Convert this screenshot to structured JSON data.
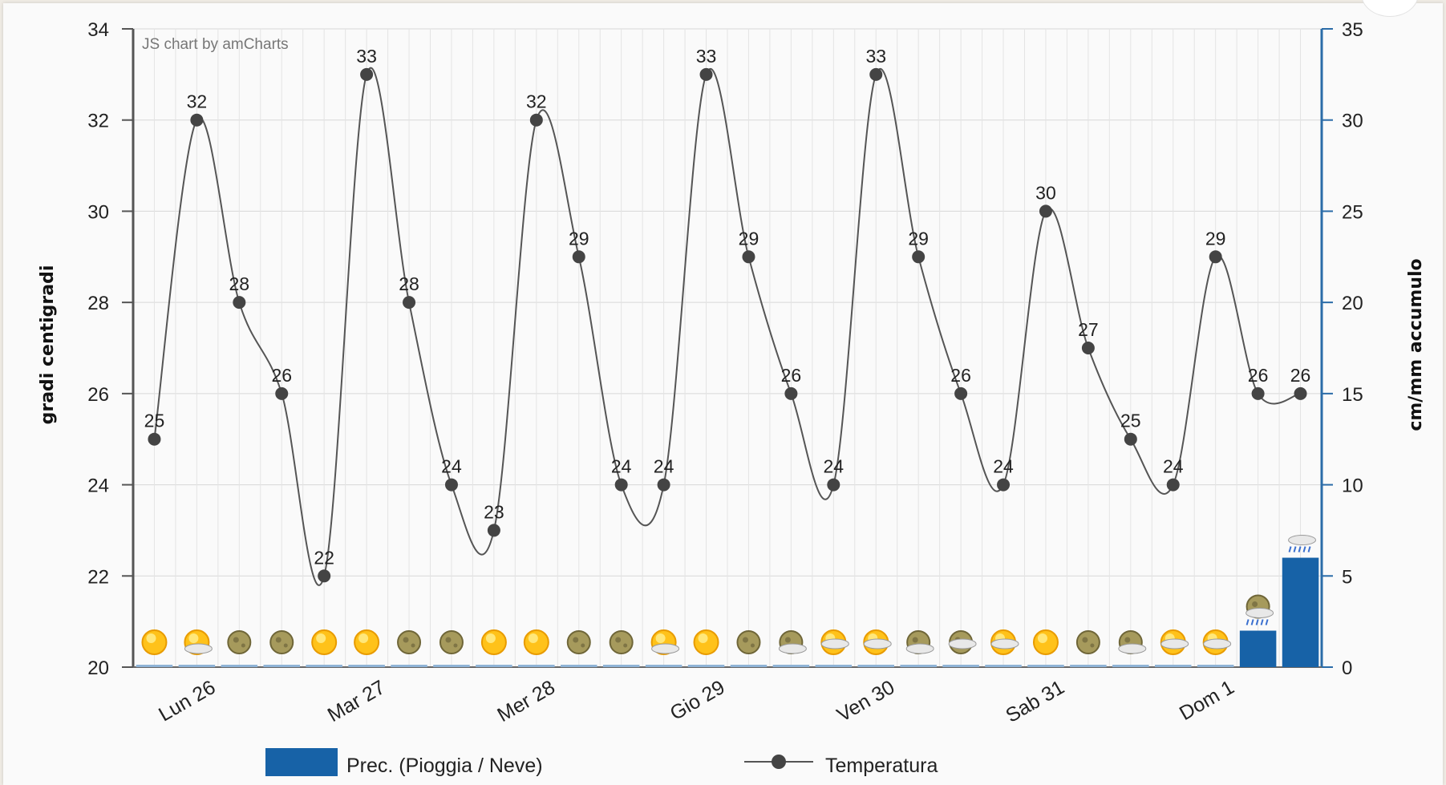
{
  "credit": "JS chart by amCharts",
  "colors": {
    "background": "#fafafa",
    "grid": "#d8d8d8",
    "left_axis": "#555555",
    "right_axis": "#2b6ca8",
    "temperature_line": "#555555",
    "precipitation_bar": "#1762a7",
    "zero_bar": "#8fb3d6"
  },
  "chart_data": {
    "type": "line",
    "title": "",
    "ylabel": "gradi centigradi",
    "y2label": "cm/mm accumulo",
    "ylim": [
      20,
      34
    ],
    "y2lim": [
      0,
      35
    ],
    "y_ticks": [
      "20",
      "22",
      "24",
      "26",
      "28",
      "30",
      "32",
      "34"
    ],
    "y2_ticks": [
      "0",
      "5",
      "10",
      "15",
      "20",
      "25",
      "30",
      "35"
    ],
    "x_day_labels": [
      {
        "label": "Lun 26",
        "index": 1
      },
      {
        "label": "Mar 27",
        "index": 5
      },
      {
        "label": "Mer 28",
        "index": 9
      },
      {
        "label": "Gio 29",
        "index": 13
      },
      {
        "label": "Ven 30",
        "index": 17
      },
      {
        "label": "Sab 31",
        "index": 21
      },
      {
        "label": "Dom 1",
        "index": 25
      }
    ],
    "grid": true,
    "legend_position": "bottom",
    "series": [
      {
        "name": "Temperatura",
        "type": "line",
        "axis": "left",
        "values": [
          25,
          32,
          28,
          26,
          22,
          33,
          28,
          24,
          23,
          32,
          29,
          24,
          24,
          33,
          29,
          26,
          24,
          33,
          29,
          26,
          24,
          30,
          27,
          25,
          24,
          29,
          26,
          26
        ]
      },
      {
        "name": "Prec. (Pioggia / Neve)",
        "type": "bar",
        "axis": "right",
        "values": [
          0,
          0,
          0,
          0,
          0,
          0,
          0,
          0,
          0,
          0,
          0,
          0,
          0,
          0,
          0,
          0,
          0,
          0,
          0,
          0,
          0,
          0,
          0,
          0,
          0,
          0,
          2,
          6
        ]
      }
    ],
    "weather_icons": [
      "sun-icon",
      "sun-cloud-icon",
      "moon-icon",
      "moon-icon",
      "sun-icon",
      "sun-icon",
      "moon-icon",
      "moon-icon",
      "sun-icon",
      "sun-icon",
      "moon-icon",
      "moon-icon",
      "sun-cloud-icon",
      "sun-icon",
      "moon-icon",
      "moon-cloud-icon",
      "sun-haze-icon",
      "sun-haze-icon",
      "moon-cloud-icon",
      "moon-haze-icon",
      "sun-haze-icon",
      "sun-icon",
      "moon-icon",
      "moon-cloud-icon",
      "sun-haze-icon",
      "sun-haze-icon",
      "moon-rain-icon",
      "rain-icon"
    ]
  }
}
